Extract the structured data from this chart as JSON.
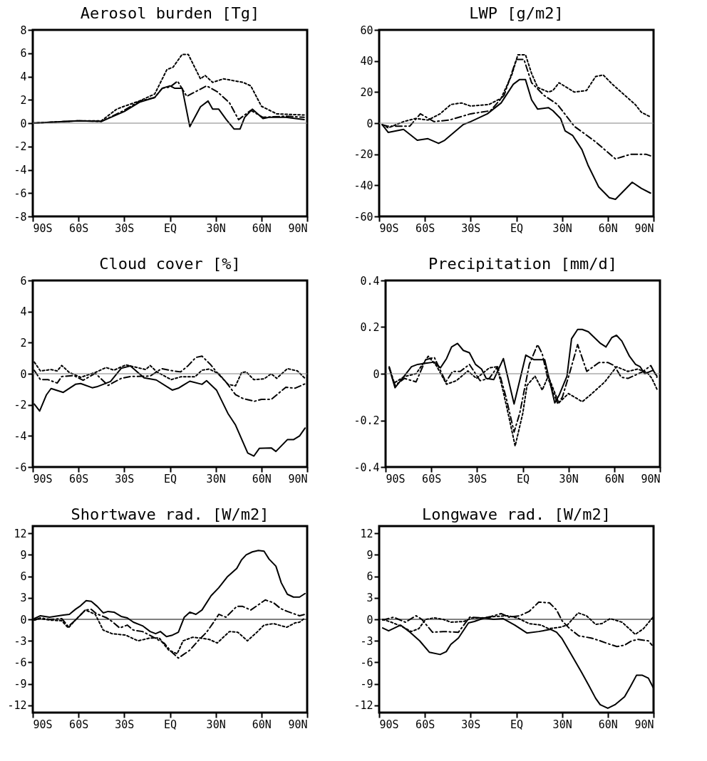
{
  "chart_data": [
    {
      "type": "line",
      "title": "Aerosol burden [Tg]",
      "xlim": [
        -90,
        90
      ],
      "xticks": [
        {
          "value": -90,
          "label": "90S"
        },
        {
          "value": -60,
          "label": "60S"
        },
        {
          "value": -30,
          "label": "30S"
        },
        {
          "value": 0,
          "label": "EQ"
        },
        {
          "value": 30,
          "label": "30N"
        },
        {
          "value": 60,
          "label": "60N"
        },
        {
          "value": 90,
          "label": "90N"
        }
      ],
      "ylim": [
        -8,
        8
      ],
      "yticks": [
        -8,
        -6,
        -4,
        -2,
        0,
        2,
        4,
        6,
        8
      ],
      "ref_lines": [
        {
          "axis": "y",
          "value": 0,
          "color": "#808080",
          "line_style": "solid"
        }
      ],
      "series": [
        {
          "color": "#000000",
          "line_style": "solid",
          "x": [
            -90,
            -60,
            -45,
            -30,
            -20,
            -10,
            -5,
            0,
            3,
            8,
            13,
            20,
            25,
            28,
            32,
            37,
            42,
            46,
            49,
            54,
            61,
            65,
            76,
            88
          ],
          "values": [
            0,
            0.2,
            0.15,
            1.0,
            1.8,
            2.2,
            3.0,
            3.2,
            3.0,
            3.0,
            -0.3,
            1.4,
            1.9,
            1.2,
            1.2,
            0.3,
            -0.5,
            -0.5,
            0.5,
            1.2,
            0.4,
            0.5,
            0.5,
            0.3
          ]
        },
        {
          "color": "#000000",
          "line_style": "dashed",
          "x": [
            -90,
            -60,
            -45,
            -30,
            -20,
            -10,
            -5,
            0,
            5,
            11,
            24,
            31,
            39,
            45,
            53,
            61,
            76,
            88
          ],
          "values": [
            0,
            0.2,
            0.15,
            1.1,
            1.9,
            2.2,
            3.0,
            3.1,
            3.6,
            2.3,
            3.2,
            2.7,
            1.75,
            0.3,
            1.1,
            0.5,
            0.6,
            0.5
          ]
        },
        {
          "color": "#000000",
          "line_style": "dotted",
          "x": [
            -90,
            -60,
            -45,
            -35,
            -30,
            -20,
            -10,
            -2,
            2,
            8,
            12,
            20,
            23,
            28,
            35,
            48,
            53,
            60,
            70,
            88
          ],
          "values": [
            0,
            0.2,
            0.2,
            1.2,
            1.45,
            1.9,
            2.5,
            4.6,
            4.8,
            5.9,
            5.9,
            3.8,
            4.1,
            3.5,
            3.8,
            3.5,
            3.2,
            1.45,
            0.8,
            0.7
          ]
        }
      ]
    },
    {
      "type": "line",
      "title": "LWP [g/m2]",
      "xlim": [
        -90,
        90
      ],
      "xticks": [
        {
          "value": -90,
          "label": "90S"
        },
        {
          "value": -60,
          "label": "60S"
        },
        {
          "value": -30,
          "label": "30S"
        },
        {
          "value": 0,
          "label": "EQ"
        },
        {
          "value": 30,
          "label": "30N"
        },
        {
          "value": 60,
          "label": "60N"
        },
        {
          "value": 90,
          "label": "90N"
        }
      ],
      "ylim": [
        -60,
        60
      ],
      "yticks": [
        -60,
        -40,
        -20,
        0,
        20,
        40,
        60
      ],
      "ref_lines": [
        {
          "axis": "y",
          "value": 0,
          "color": "#808080",
          "line_style": "solid"
        }
      ],
      "series": [
        {
          "color": "#000000",
          "line_style": "solid",
          "x": [
            -88,
            -84,
            -74,
            -65,
            -58,
            -51,
            -47,
            -35,
            -30,
            -19,
            -10,
            -2,
            2,
            6,
            10,
            14,
            21,
            24,
            29,
            32,
            37,
            43,
            47,
            54,
            61,
            65,
            76,
            82,
            88
          ],
          "values": [
            -1,
            -6,
            -4,
            -11,
            -10,
            -13,
            -11,
            -1,
            1,
            6,
            13,
            25,
            28,
            28,
            15,
            9,
            10,
            8,
            3,
            -5,
            -8,
            -17,
            -27,
            -41,
            -48,
            -49,
            -38,
            -42,
            -45
          ]
        },
        {
          "color": "#000000",
          "line_style": "dashed",
          "x": [
            -88,
            -84,
            -70,
            -63,
            -54,
            -44,
            -30,
            -17,
            -8,
            0,
            5,
            10,
            18,
            27,
            38,
            52,
            65,
            75,
            85,
            88
          ],
          "values": [
            -1,
            -2,
            -2,
            6,
            1,
            2,
            6,
            8,
            18,
            41,
            41,
            26,
            18,
            12,
            -2,
            -12,
            -23,
            -20,
            -20,
            -21
          ]
        },
        {
          "color": "#000000",
          "line_style": "dotted",
          "x": [
            -88,
            -84,
            -74,
            -66,
            -58,
            -50,
            -43,
            -36,
            -30,
            -18,
            -10,
            -3,
            1,
            6,
            10,
            14,
            21,
            24,
            28,
            38,
            46,
            52,
            57,
            63,
            78,
            82,
            88
          ],
          "values": [
            -1,
            -3,
            1,
            3,
            2,
            6,
            12,
            13,
            11,
            12,
            16,
            31,
            44,
            44,
            32,
            23,
            20,
            21,
            26,
            20,
            21,
            30,
            31,
            25,
            12,
            7,
            4
          ]
        }
      ]
    },
    {
      "type": "line",
      "title": "Cloud cover [%]",
      "xlim": [
        -90,
        90
      ],
      "xticks": [
        {
          "value": -90,
          "label": "90S"
        },
        {
          "value": -60,
          "label": "60S"
        },
        {
          "value": -30,
          "label": "30S"
        },
        {
          "value": 0,
          "label": "EQ"
        },
        {
          "value": 30,
          "label": "30N"
        },
        {
          "value": 60,
          "label": "60N"
        },
        {
          "value": 90,
          "label": "90N"
        }
      ],
      "ylim": [
        -6,
        6
      ],
      "yticks": [
        -6,
        -4,
        -2,
        0,
        2,
        4,
        6
      ],
      "ref_lines": [
        {
          "axis": "y",
          "value": 0,
          "color": "#808080",
          "line_style": "solid"
        }
      ],
      "series": [
        {
          "color": "#000000",
          "line_style": "solid",
          "x": [
            -89,
            -85.5,
            -81,
            -78,
            -70,
            -62,
            -58.6,
            -51,
            -48,
            -39,
            -32,
            -26,
            -17,
            -9,
            1.5,
            5.5,
            13,
            21,
            24,
            30.5,
            38,
            43,
            51,
            55,
            58.6,
            66.4,
            69.5,
            77,
            81,
            85,
            88.6
          ],
          "values": [
            -1.95,
            -2.4,
            -1.35,
            -0.95,
            -1.2,
            -0.68,
            -0.63,
            -0.9,
            -0.84,
            -0.5,
            0.35,
            0.5,
            -0.26,
            -0.4,
            -1.05,
            -0.93,
            -0.48,
            -0.68,
            -0.45,
            -1.05,
            -2.55,
            -3.3,
            -5.1,
            -5.3,
            -4.8,
            -4.77,
            -5.0,
            -4.24,
            -4.24,
            -4.0,
            -3.5
          ]
        },
        {
          "color": "#000000",
          "line_style": "dashed",
          "x": [
            -89,
            -85,
            -80,
            -74,
            -71,
            -63,
            -57,
            -49,
            -40.6,
            -32,
            -26,
            -13,
            -5.5,
            1,
            7,
            12,
            17,
            21,
            26.5,
            30.5,
            37,
            43,
            48,
            55.5,
            60,
            66.4,
            71,
            76,
            82,
            88.6
          ],
          "values": [
            0.22,
            -0.38,
            -0.38,
            -0.6,
            -0.18,
            -0.12,
            -0.42,
            0.03,
            -0.75,
            -0.3,
            -0.18,
            -0.15,
            0.33,
            0.2,
            0.12,
            0.53,
            1.05,
            1.13,
            0.6,
            0.12,
            -0.57,
            -1.35,
            -1.6,
            -1.77,
            -1.65,
            -1.65,
            -1.28,
            -0.87,
            -0.93,
            -0.65
          ]
        },
        {
          "color": "#000000",
          "line_style": "dotted",
          "x": [
            -89,
            -85,
            -78,
            -74,
            -71,
            -66,
            -58.6,
            -49,
            -42,
            -36.7,
            -29,
            -16,
            -13,
            -8.6,
            0.8,
            7,
            16.4,
            21,
            25.8,
            32,
            38,
            43,
            47,
            50,
            55,
            61.7,
            66.4,
            70,
            77,
            83.6,
            88.6
          ],
          "values": [
            0.75,
            0.18,
            0.27,
            0.18,
            0.53,
            0.08,
            -0.23,
            0.08,
            0.4,
            0.23,
            0.57,
            0.27,
            0.53,
            0.12,
            -0.38,
            -0.2,
            -0.2,
            0.23,
            0.3,
            0,
            -0.68,
            -0.78,
            0.08,
            0.12,
            -0.38,
            -0.33,
            0,
            -0.3,
            0.33,
            0.18,
            -0.3
          ]
        }
      ]
    },
    {
      "type": "line",
      "title": "Precipitation [mm/d]",
      "xlim": [
        -90,
        90
      ],
      "xticks": [
        {
          "value": -90,
          "label": "90S"
        },
        {
          "value": -60,
          "label": "60S"
        },
        {
          "value": -30,
          "label": "30S"
        },
        {
          "value": 0,
          "label": "EQ"
        },
        {
          "value": 30,
          "label": "30N"
        },
        {
          "value": 60,
          "label": "60N"
        },
        {
          "value": 90,
          "label": "90N"
        }
      ],
      "ylim": [
        -0.4,
        0.4
      ],
      "yticks": [
        -0.4,
        -0.2,
        0,
        0.2,
        0.4
      ],
      "ref_lines": [
        {
          "axis": "y",
          "value": 0,
          "color": "#808080",
          "line_style": "solid"
        }
      ],
      "series": [
        {
          "color": "#000000",
          "line_style": "solid",
          "x": [
            -87.6,
            -83.8,
            -79,
            -73,
            -69,
            -63.7,
            -58,
            -54,
            -50,
            -46.7,
            -42.8,
            -39,
            -35,
            -31,
            -27,
            -24,
            -19,
            -12.7,
            -5.7,
            2,
            7.4,
            14.4,
            21,
            24,
            29,
            32,
            36,
            39,
            43,
            51,
            54.6,
            58.4,
            61.5,
            65,
            70,
            74,
            77,
            80,
            85.5,
            88
          ],
          "values": [
            0.025,
            -0.06,
            -0.02,
            0.03,
            0.04,
            0.045,
            0.05,
            0.025,
            0.065,
            0.115,
            0.13,
            0.1,
            0.09,
            0.04,
            0.02,
            -0.02,
            -0.025,
            0.065,
            -0.13,
            0.08,
            0.06,
            0.06,
            -0.125,
            -0.09,
            -0.01,
            0.15,
            0.19,
            0.19,
            0.18,
            0.13,
            0.115,
            0.155,
            0.165,
            0.14,
            0.075,
            0.04,
            0.03,
            0,
            0.015,
            -0.01
          ]
        },
        {
          "color": "#000000",
          "line_style": "dashed",
          "x": [
            -87.6,
            -83.8,
            -77.6,
            -70,
            -63.7,
            -58,
            -50.5,
            -46,
            -41,
            -35,
            -28,
            -22,
            -16.5,
            -11,
            -5.7,
            -2,
            4.3,
            9.7,
            12.8,
            16,
            23,
            26,
            30.6,
            36,
            42,
            50,
            56,
            60,
            64.6,
            69,
            78.5,
            84,
            88
          ],
          "values": [
            0.03,
            -0.05,
            -0.02,
            -0.035,
            0.06,
            0.07,
            -0.035,
            0.01,
            0.01,
            0.04,
            -0.03,
            -0.02,
            0.03,
            -0.1,
            -0.25,
            -0.17,
            0.04,
            0.125,
            0.085,
            -0.01,
            -0.13,
            -0.1,
            0,
            0.125,
            0.01,
            0.048,
            0.048,
            0.035,
            -0.015,
            -0.02,
            0.008,
            0.035,
            -0.015
          ]
        },
        {
          "color": "#000000",
          "line_style": "dotted",
          "x": [
            -87.6,
            -84.5,
            -77.6,
            -70,
            -62,
            -56.7,
            -50,
            -43.6,
            -36,
            -30.4,
            -22,
            -17,
            -13.4,
            -9.6,
            -5,
            0,
            2.8,
            8,
            12.8,
            16.7,
            23.6,
            30,
            39,
            44.5,
            53.8,
            61.5,
            69,
            75.4,
            81.6,
            84.7,
            88
          ],
          "values": [
            0.025,
            -0.04,
            -0.012,
            0,
            0.075,
            0.035,
            -0.045,
            -0.03,
            0.012,
            -0.02,
            0.025,
            0.03,
            -0.06,
            -0.17,
            -0.31,
            -0.17,
            -0.05,
            -0.01,
            -0.07,
            -0.01,
            -0.125,
            -0.085,
            -0.12,
            -0.09,
            -0.035,
            0.03,
            0.01,
            0.02,
            0.005,
            -0.02,
            -0.066
          ]
        }
      ]
    },
    {
      "type": "line",
      "title": "Shortwave rad. [W/m2]",
      "xlim": [
        -90,
        90
      ],
      "xticks": [
        {
          "value": -90,
          "label": "90S"
        },
        {
          "value": -60,
          "label": "60S"
        },
        {
          "value": -30,
          "label": "30S"
        },
        {
          "value": 0,
          "label": "EQ"
        },
        {
          "value": 30,
          "label": "30N"
        },
        {
          "value": 60,
          "label": "60N"
        },
        {
          "value": 90,
          "label": "90N"
        }
      ],
      "ylim": [
        -13,
        13
      ],
      "yticks": [
        -12,
        -9,
        -6,
        -3,
        0,
        3,
        6,
        9,
        12
      ],
      "ref_lines": [
        {
          "axis": "y",
          "value": 0,
          "color": "#000000",
          "line_style": "solid"
        }
      ],
      "series": [
        {
          "color": "#000000",
          "line_style": "solid",
          "x": [
            -89,
            -85,
            -79,
            -70,
            -66,
            -62,
            -58.6,
            -55,
            -51.6,
            -47.7,
            -43.8,
            -40.6,
            -36.7,
            -32,
            -28,
            -24,
            -18,
            -13,
            -9.4,
            -6.3,
            -2.3,
            1.6,
            5.5,
            9.4,
            13,
            17,
            21,
            27,
            32,
            37.5,
            43.8,
            47,
            50,
            54,
            58,
            61.7,
            65,
            69.5,
            73,
            77,
            81,
            85,
            88.6
          ],
          "values": [
            0.1,
            0.5,
            0.3,
            0.6,
            0.7,
            1.4,
            1.9,
            2.6,
            2.5,
            1.8,
            0.9,
            1.1,
            1.0,
            0.4,
            0.2,
            -0.4,
            -0.9,
            -1.7,
            -2.0,
            -1.7,
            -2.4,
            -2.2,
            -1.8,
            0.3,
            1.0,
            0.7,
            1.3,
            3.3,
            4.4,
            5.9,
            7.1,
            8.3,
            9.0,
            9.4,
            9.6,
            9.5,
            8.4,
            7.4,
            5.1,
            3.5,
            3.1,
            3.1,
            3.6
          ]
        },
        {
          "color": "#000000",
          "line_style": "dashed",
          "x": [
            -89,
            -85,
            -79,
            -71,
            -66.7,
            -62.5,
            -55.5,
            -51.6,
            -48.4,
            -41.4,
            -38,
            -33,
            -28,
            -24,
            -18,
            -11.7,
            -3.9,
            0.8,
            5.5,
            13,
            18,
            24,
            29,
            32,
            36.7,
            43.8,
            47.7,
            53,
            57.8,
            62.5,
            68,
            72.6,
            77,
            85,
            88.6
          ],
          "values": [
            -0.1,
            0.2,
            0,
            0.1,
            -1.0,
            -0.2,
            1.3,
            1.4,
            0.8,
            0.2,
            -0.3,
            -1.2,
            -0.8,
            -1.5,
            -1.7,
            -2.4,
            -3.3,
            -4.5,
            -5.4,
            -4.3,
            -3.1,
            -1.8,
            -0.3,
            0.7,
            0.3,
            1.8,
            1.8,
            1.3,
            2.0,
            2.7,
            2.3,
            1.5,
            1.1,
            0.5,
            0.7
          ]
        },
        {
          "color": "#000000",
          "line_style": "dotted",
          "x": [
            -89,
            -85,
            -79,
            -71,
            -66.7,
            -62.5,
            -55.5,
            -49,
            -43.8,
            -38,
            -29,
            -21,
            -13,
            -7,
            -3.9,
            -0.8,
            4.7,
            8.6,
            14.8,
            19.5,
            25.8,
            31,
            39,
            44.5,
            50.8,
            57,
            61.7,
            68,
            76.6,
            82,
            85,
            88.6
          ],
          "values": [
            -0.1,
            0.1,
            -0.1,
            -0.2,
            -1.2,
            -0.2,
            1.3,
            0.7,
            -1.5,
            -2.0,
            -2.2,
            -3.0,
            -2.6,
            -2.6,
            -3.5,
            -4.3,
            -4.8,
            -3.0,
            -2.5,
            -2.6,
            -2.8,
            -3.3,
            -1.7,
            -1.8,
            -3.0,
            -1.8,
            -0.8,
            -0.6,
            -1.1,
            -0.5,
            -0.4,
            0.2
          ]
        }
      ]
    },
    {
      "type": "line",
      "title": "Longwave rad. [W/m2]",
      "xlim": [
        -90,
        90
      ],
      "xticks": [
        {
          "value": -90,
          "label": "90S"
        },
        {
          "value": -60,
          "label": "60S"
        },
        {
          "value": -30,
          "label": "30S"
        },
        {
          "value": 0,
          "label": "EQ"
        },
        {
          "value": 30,
          "label": "30N"
        },
        {
          "value": 60,
          "label": "60N"
        },
        {
          "value": 90,
          "label": "90N"
        }
      ],
      "ylim": [
        -13,
        13
      ],
      "yticks": [
        -12,
        -9,
        -6,
        -3,
        0,
        3,
        6,
        9,
        12
      ],
      "ref_lines": [
        {
          "axis": "y",
          "value": 0,
          "color": "#000000",
          "line_style": "solid"
        }
      ],
      "series": [
        {
          "color": "#000000",
          "line_style": "solid",
          "x": [
            -87.7,
            -83.8,
            -76,
            -69.7,
            -63.4,
            -57,
            -50,
            -46,
            -43,
            -38,
            -31.4,
            -27.5,
            -21,
            -15,
            -8.8,
            -1,
            6.9,
            14.7,
            22.5,
            26.4,
            30,
            36.6,
            42.8,
            47.5,
            52,
            55,
            60,
            64.7,
            71,
            75,
            78.8,
            82.7,
            86.6,
            90
          ],
          "values": [
            -1.2,
            -1.6,
            -0.8,
            -1.8,
            -3.0,
            -4.6,
            -4.9,
            -4.5,
            -3.5,
            -2.6,
            -0.5,
            -0.3,
            0.2,
            0,
            0.1,
            -0.8,
            -1.9,
            -1.7,
            -1.4,
            -1.8,
            -2.7,
            -5.1,
            -7.4,
            -9.2,
            -11.0,
            -11.9,
            -12.4,
            -11.9,
            -10.8,
            -9.3,
            -7.8,
            -7.8,
            -8.2,
            -9.6
          ]
        },
        {
          "color": "#000000",
          "line_style": "dashed",
          "x": [
            -87.7,
            -80.6,
            -72.8,
            -65.8,
            -62,
            -55,
            -48,
            -38,
            -30.6,
            -21,
            -16.6,
            -10,
            -4.8,
            2.2,
            8.4,
            14.7,
            21.7,
            26.4,
            30,
            35,
            41,
            49,
            55,
            61.6,
            66,
            71,
            75.6,
            80,
            86.6,
            89
          ],
          "values": [
            -0.1,
            0.3,
            -0.4,
            0.5,
            0,
            -1.8,
            -1.7,
            -1.8,
            0.3,
            0.2,
            0.4,
            0.8,
            0.3,
            0.5,
            1.1,
            2.4,
            2.3,
            1.3,
            -0.2,
            -1.3,
            -2.3,
            -2.6,
            -3.0,
            -3.5,
            -3.8,
            -3.6,
            -3.0,
            -2.8,
            -3.0,
            -3.6
          ]
        },
        {
          "color": "#000000",
          "line_style": "dotted",
          "x": [
            -87.7,
            -82,
            -75,
            -69,
            -64,
            -59.5,
            -54,
            -48,
            -43,
            -34.5,
            -29,
            -21,
            -14,
            -5.6,
            0.6,
            8.4,
            16.3,
            21,
            28.75,
            33.4,
            40.5,
            46,
            52,
            56,
            61.6,
            69.4,
            74,
            78,
            83.4,
            87.3,
            90
          ],
          "values": [
            0,
            -0.4,
            -1.0,
            -1.7,
            -1.3,
            0,
            0.2,
            0,
            -0.4,
            -0.3,
            0.2,
            0.2,
            0.4,
            0.5,
            0.2,
            -0.6,
            -0.8,
            -1.3,
            -1.1,
            -0.8,
            0.9,
            0.5,
            -0.7,
            -0.6,
            0.1,
            -0.4,
            -1.3,
            -2.1,
            -1.3,
            -0.3,
            0.4
          ]
        }
      ]
    }
  ]
}
